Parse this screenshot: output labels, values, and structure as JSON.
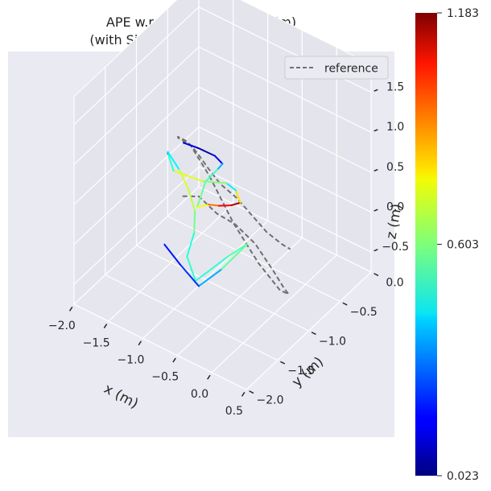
{
  "chart_data": {
    "type": "line",
    "projection": "3d",
    "title_line1": "APE w.r.t. translation part (m)",
    "title_line2": "(with Sim(3) Umeyama alignment)",
    "xlabel": "x (m)",
    "ylabel": "y (m)",
    "zlabel": "z (m)",
    "xticks": [
      "−2.0",
      "−1.5",
      "−1.0",
      "−0.5",
      "0.0",
      "0.5"
    ],
    "yticks": [
      "−2.0",
      "−1.5",
      "−1.0",
      "−0.5",
      "0.0"
    ],
    "zticks": [
      "−0.5",
      "0.0",
      "0.5",
      "1.0",
      "1.5"
    ],
    "legend": {
      "placement": "top-right",
      "entries": [
        "reference"
      ]
    },
    "grid": true,
    "colorbar": {
      "colormap": "jet",
      "min": 0.023,
      "max": 1.183,
      "tick_labels": [
        "1.183",
        "0.603",
        "0.023"
      ]
    },
    "series": [
      {
        "name": "reference",
        "style": "dashed",
        "color": "#707070",
        "points": [
          [
            -0.76,
            -1.63,
            0.86
          ],
          [
            -0.74,
            -1.39,
            0.69
          ],
          [
            -0.68,
            -1.17,
            0.34
          ],
          [
            -0.56,
            -1.01,
            0.14
          ],
          [
            -0.4,
            -0.86,
            -0.15
          ],
          [
            -0.28,
            -0.7,
            -0.56
          ],
          [
            -0.24,
            -0.57,
            -0.86
          ],
          [
            -0.27,
            -0.47,
            -1.01
          ],
          [
            -0.36,
            -0.51,
            -0.97
          ],
          [
            -0.48,
            -0.72,
            -0.53
          ],
          [
            -0.6,
            -0.99,
            0.12
          ],
          [
            -0.7,
            -1.27,
            0.88
          ],
          [
            -0.75,
            -1.52,
            1.43
          ],
          [
            -0.77,
            -1.69,
            1.63
          ],
          [
            -0.8,
            -1.66,
            1.61
          ],
          [
            -0.8,
            -1.51,
            1.44
          ],
          [
            -0.8,
            -1.34,
            1.16
          ],
          [
            -0.78,
            -1.19,
            0.87
          ],
          [
            -0.72,
            -1.07,
            0.62
          ],
          [
            -0.6,
            -0.94,
            0.4
          ],
          [
            -0.47,
            -0.83,
            0.15
          ],
          [
            -0.36,
            -0.72,
            -0.09
          ],
          [
            -0.25,
            -0.6,
            -0.28
          ],
          [
            -0.2,
            -0.52,
            -0.38
          ]
        ]
      },
      {
        "name": "estimate",
        "style": "solid",
        "colormap": "jet",
        "points": [
          [
            -0.93,
            -1.43,
            1.31,
            0.18
          ],
          [
            -0.83,
            -1.3,
            1.19,
            0.1
          ],
          [
            -0.71,
            -1.17,
            1.05,
            0.05
          ],
          [
            -0.65,
            -1.11,
            0.93,
            0.26
          ],
          [
            -0.69,
            -1.15,
            0.87,
            0.48
          ],
          [
            -0.77,
            -1.25,
            0.76,
            0.58
          ],
          [
            -0.79,
            -1.29,
            0.63,
            0.55
          ],
          [
            -0.81,
            -1.34,
            0.49,
            0.64
          ],
          [
            -0.73,
            -1.25,
            0.49,
            0.83
          ],
          [
            -0.65,
            -1.17,
            0.45,
            0.98
          ],
          [
            -0.56,
            -1.07,
            0.42,
            1.1
          ],
          [
            -0.5,
            -0.99,
            0.42,
            1.18
          ],
          [
            -0.54,
            -1.02,
            0.58,
            0.38
          ],
          [
            -0.61,
            -1.09,
            0.69,
            0.5
          ],
          [
            -0.78,
            -1.29,
            0.79,
            0.72
          ],
          [
            -0.99,
            -1.52,
            1.0,
            0.7
          ],
          [
            -1.01,
            -1.59,
            1.26,
            0.32
          ],
          [
            -1.0,
            -1.6,
            1.29,
            0.22
          ],
          [
            -0.94,
            -1.48,
            1.0,
            0.68
          ],
          [
            -0.89,
            -1.39,
            0.71,
            0.73
          ],
          [
            -0.87,
            -1.31,
            0.39,
            0.62
          ],
          [
            -0.9,
            -1.29,
            0.09,
            0.55
          ],
          [
            -0.94,
            -1.36,
            -0.17,
            0.45
          ],
          [
            -0.87,
            -1.3,
            -0.49,
            0.58
          ],
          [
            -0.64,
            -1.04,
            -0.28,
            0.44
          ],
          [
            -0.5,
            -0.88,
            -0.18,
            0.66
          ],
          [
            -0.7,
            -1.08,
            -0.44,
            0.48
          ],
          [
            -0.86,
            -1.26,
            -0.58,
            0.25
          ],
          [
            -0.95,
            -1.46,
            -0.2,
            0.2
          ],
          [
            -1.05,
            -1.6,
            0.11,
            0.18
          ]
        ]
      }
    ]
  }
}
